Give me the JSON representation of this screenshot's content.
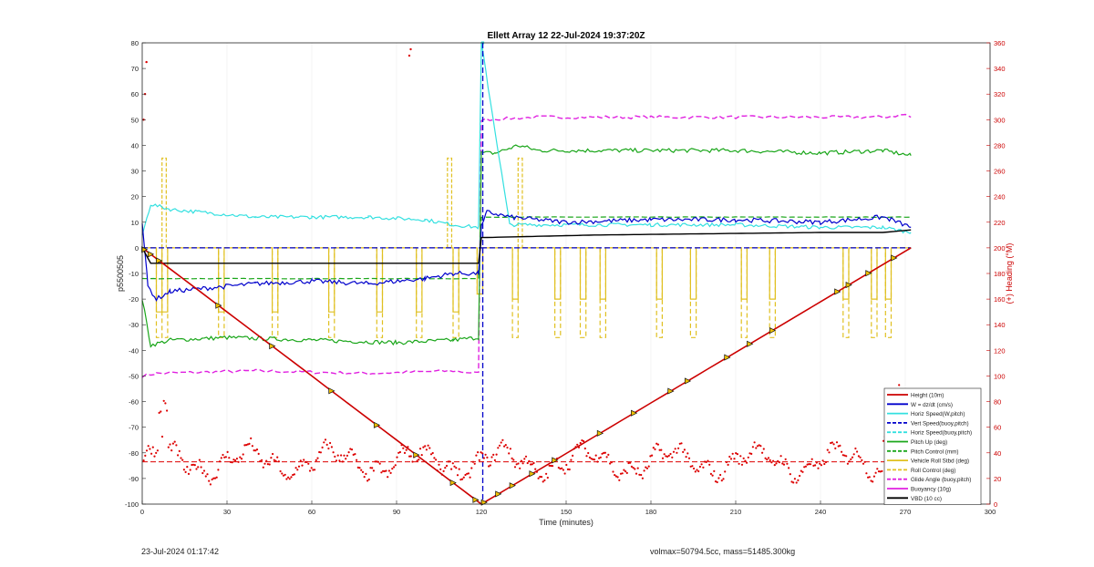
{
  "chart_data": {
    "type": "line",
    "title": "Ellett Array 12 22-Jul-2024 19:37:20Z",
    "xlabel": "Time (minutes)",
    "ylabel": "p5500505",
    "y2label": "(+) Heading (°M)",
    "xlim": [
      0,
      300
    ],
    "ylim": [
      -100,
      80
    ],
    "y2lim": [
      0,
      360
    ],
    "x_ticks": [
      0,
      30,
      60,
      90,
      120,
      150,
      180,
      210,
      240,
      270,
      300
    ],
    "y_ticks": [
      -100,
      -90,
      -80,
      -70,
      -60,
      -50,
      -40,
      -30,
      -20,
      -10,
      0,
      10,
      20,
      30,
      40,
      50,
      60,
      70,
      80
    ],
    "y2_ticks": [
      0,
      20,
      40,
      60,
      80,
      100,
      120,
      140,
      160,
      180,
      200,
      220,
      240,
      260,
      280,
      300,
      320,
      340,
      360
    ],
    "colors": {
      "height": "#cc0000",
      "w": "#0000cc",
      "horiz_w": "#33e0e0",
      "vert_buoy": "#0000cc",
      "horiz_buoy": "#33e0e0",
      "pitch": "#1aa61a",
      "pitch_ctrl": "#1aa61a",
      "roll": "#e0c020",
      "roll_ctrl": "#e0c020",
      "glide": "#e020e0",
      "buoyancy": "#e020e0",
      "vbd": "#000000",
      "heading": "#dd0000",
      "right_axis": "#cc0000"
    },
    "legend_position": "bottom-right",
    "legend": [
      {
        "label": "Height (10m)",
        "color": "#cc0000",
        "style": "solid"
      },
      {
        "label": "W = dz/dt (cm/s)",
        "color": "#0000cc",
        "style": "solid"
      },
      {
        "label": "Horiz Speed(W,pitch)",
        "color": "#33e0e0",
        "style": "solid"
      },
      {
        "label": "Vert Speed(buoy,pitch)",
        "color": "#0000cc",
        "style": "dashed"
      },
      {
        "label": "Horiz Speed(buoy,pitch)",
        "color": "#33e0e0",
        "style": "dashed"
      },
      {
        "label": "Pitch Up (deg)",
        "color": "#1aa61a",
        "style": "solid"
      },
      {
        "label": "Pitch Control (mm)",
        "color": "#1aa61a",
        "style": "dashed"
      },
      {
        "label": "Vehicle Roll Stbd (deg)",
        "color": "#e0c020",
        "style": "solid"
      },
      {
        "label": "Roll Control (deg)",
        "color": "#e0c020",
        "style": "dashed"
      },
      {
        "label": "Glide Angle (buoy,pitch)",
        "color": "#e020e0",
        "style": "dashed"
      },
      {
        "label": "Buoyancy (10g)",
        "color": "#e020e0",
        "style": "solid"
      },
      {
        "label": "VBD (10 cc)",
        "color": "#000000",
        "style": "solid"
      }
    ],
    "series": [
      {
        "key": "height",
        "x": [
          0,
          120,
          272
        ],
        "values": [
          0,
          -100,
          0
        ]
      },
      {
        "key": "w",
        "x": [
          0,
          2,
          5,
          10,
          20,
          40,
          60,
          80,
          100,
          110,
          119,
          120,
          122,
          130,
          150,
          180,
          210,
          240,
          262,
          265,
          272
        ],
        "values": [
          10,
          -15,
          -20,
          -17,
          -16,
          -14,
          -13,
          -14,
          -12,
          -10,
          -10,
          8,
          14,
          12,
          10,
          11,
          11,
          10,
          12,
          11,
          8
        ]
      },
      {
        "key": "horiz_w",
        "x": [
          0,
          3,
          10,
          20,
          40,
          60,
          80,
          100,
          110,
          119,
          120,
          130,
          150,
          180,
          210,
          240,
          262,
          272
        ],
        "values": [
          5,
          17,
          15,
          14,
          12,
          12,
          12,
          11,
          9,
          8,
          80,
          9,
          9,
          9,
          9,
          8,
          8,
          6
        ]
      },
      {
        "key": "vert_buoy",
        "x": [
          0,
          119.5,
          119.5,
          120.5,
          120.5,
          272
        ],
        "values": [
          0,
          0,
          80,
          80,
          -100,
          0
        ]
      },
      {
        "key": "pitch",
        "x": [
          0,
          3,
          10,
          30,
          60,
          90,
          110,
          119,
          120,
          125,
          133,
          140,
          180,
          210,
          240,
          262,
          272
        ],
        "values": [
          -20,
          -38,
          -36,
          -35,
          -36,
          -37,
          -36,
          -35,
          37,
          37,
          40,
          38,
          38,
          38,
          37,
          38,
          36
        ]
      },
      {
        "key": "pitch_ctrl",
        "x": [
          0,
          119,
          120,
          272
        ],
        "values": [
          -12,
          -12,
          12,
          12
        ]
      },
      {
        "key": "vbd",
        "x": [
          0,
          3,
          119,
          120,
          160,
          240,
          262,
          272
        ],
        "values": [
          0,
          -6,
          -6,
          4,
          5,
          6,
          6,
          7
        ]
      },
      {
        "key": "glide",
        "x": [
          0,
          5,
          40,
          80,
          110,
          119,
          120,
          140,
          180,
          220,
          262,
          270,
          272
        ],
        "values": [
          -50,
          -49,
          -48,
          -49,
          -48,
          -49,
          50,
          51,
          51,
          51,
          51,
          52,
          51
        ]
      }
    ],
    "heading_axis": "right",
    "heading_mean": 33
  },
  "footer": {
    "left": "23-Jul-2024 01:17:42",
    "right": "volmax=50794.5cc, mass=51485.300kg"
  }
}
